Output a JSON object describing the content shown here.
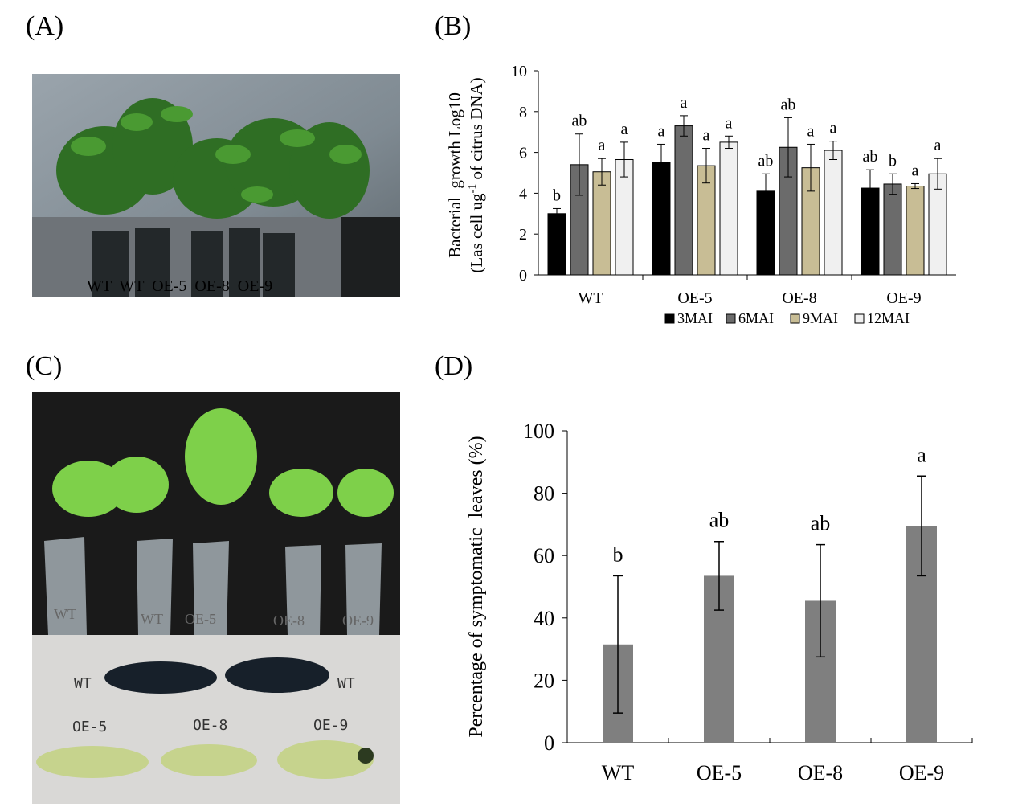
{
  "panels": {
    "a": {
      "label": "(A)",
      "photo_labels": "WT  WT  OE-5  OE-8  OE-9"
    },
    "b": {
      "label": "(B)"
    },
    "c": {
      "label": "(C)",
      "pot_labels": [
        "WT",
        "WT",
        "OE-5",
        "OE-8",
        "OE-9"
      ],
      "leaf_labels": [
        "WT",
        "WT",
        "OE-5",
        "OE-8",
        "OE-9"
      ]
    },
    "d": {
      "label": "(D)"
    }
  },
  "colors": {
    "wt_bar": "#000000",
    "g6": "#6b6b6b",
    "g9": "#c8bd95",
    "g12": "#f0f0f0",
    "d_bar": "#7f7f7f"
  },
  "chart_data": [
    {
      "type": "bar",
      "panel": "B",
      "categories": [
        "WT",
        "OE-5",
        "OE-8",
        "OE-9"
      ],
      "ylabel_line1": "Bacterial  growth Log10",
      "ylabel_line2_a": "(Las cell ug",
      "ylabel_line2_sup": "-1",
      "ylabel_line2_b": " of citrus DNA)",
      "ylim": [
        0,
        10
      ],
      "yticks": [
        0,
        2,
        4,
        6,
        8,
        10
      ],
      "legend_position": "bottom",
      "series": [
        {
          "name": "3MAI",
          "values": [
            3.0,
            5.5,
            4.1,
            4.25
          ],
          "errors": [
            0.25,
            0.9,
            0.85,
            0.9
          ],
          "letters": [
            "b",
            "a",
            "ab",
            "ab"
          ]
        },
        {
          "name": "6MAI",
          "values": [
            5.4,
            7.3,
            6.25,
            4.45
          ],
          "errors": [
            1.5,
            0.5,
            1.45,
            0.5
          ],
          "letters": [
            "ab",
            "a",
            "ab",
            "b"
          ]
        },
        {
          "name": "9MAI",
          "values": [
            5.05,
            5.35,
            5.25,
            4.35
          ],
          "errors": [
            0.65,
            0.85,
            1.15,
            0.12
          ],
          "letters": [
            "a",
            "a",
            "a",
            "a"
          ]
        },
        {
          "name": "12MAI",
          "values": [
            5.65,
            6.5,
            6.1,
            4.95
          ],
          "errors": [
            0.85,
            0.3,
            0.45,
            0.75
          ],
          "letters": [
            "a",
            "a",
            "a",
            "a"
          ]
        }
      ]
    },
    {
      "type": "bar",
      "panel": "D",
      "categories": [
        "WT",
        "OE-5",
        "OE-8",
        "OE-9"
      ],
      "ylabel": "Percentage of symptomatic  leaves (%)",
      "ylim": [
        0,
        100
      ],
      "yticks": [
        0,
        20,
        40,
        60,
        80,
        100
      ],
      "values": [
        31.5,
        53.5,
        45.5,
        69.5
      ],
      "errors": [
        22,
        11,
        18,
        16
      ],
      "letters": [
        "b",
        "ab",
        "ab",
        "a"
      ]
    }
  ]
}
